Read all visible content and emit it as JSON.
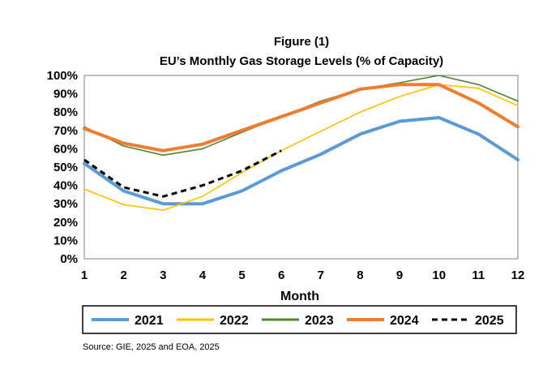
{
  "chart_data": {
    "type": "line",
    "title": "Figure (1)",
    "subtitle": "EU’s Monthly Gas Storage Levels (% of Capacity)",
    "xlabel": "Month",
    "ylabel": "",
    "x": [
      1,
      2,
      3,
      4,
      5,
      6,
      7,
      8,
      9,
      10,
      11,
      12
    ],
    "ylim": [
      0,
      100
    ],
    "y_ticks": [
      "0%",
      "10%",
      "20%",
      "30%",
      "40%",
      "50%",
      "60%",
      "70%",
      "80%",
      "90%",
      "100%"
    ],
    "x_ticks": [
      "1",
      "2",
      "3",
      "4",
      "5",
      "6",
      "7",
      "8",
      "9",
      "10",
      "11",
      "12"
    ],
    "grid": false,
    "legend": "bottom",
    "series": [
      {
        "name": "2021",
        "color": "#5b9bd5",
        "style": "solid",
        "width": 4,
        "values": [
          52,
          37,
          30,
          30,
          37,
          48,
          57,
          68,
          75,
          77,
          68,
          54
        ]
      },
      {
        "name": "2022",
        "color": "#ffc000",
        "style": "solid",
        "width": 1.6,
        "values": [
          38,
          29.5,
          26.5,
          34,
          47,
          59,
          69.5,
          80,
          88.5,
          95,
          93,
          83.5
        ]
      },
      {
        "name": "2023",
        "color": "#548235",
        "style": "solid",
        "width": 1.6,
        "values": [
          72,
          61.5,
          56.5,
          60,
          69,
          77.5,
          86,
          92.5,
          96,
          100,
          95,
          86
        ]
      },
      {
        "name": "2024",
        "color": "#ed7d31",
        "style": "solid",
        "width": 4,
        "values": [
          71,
          63,
          59,
          62.5,
          70,
          77.5,
          85,
          92.5,
          95,
          95,
          85,
          72
        ]
      },
      {
        "name": "2025",
        "color": "#000000",
        "style": "dashed",
        "width": 3,
        "values": [
          54,
          39,
          34,
          40,
          48,
          59,
          null,
          null,
          null,
          null,
          null,
          null
        ]
      }
    ]
  },
  "source": "Source: GIE, 2025 and EOA, 2025"
}
